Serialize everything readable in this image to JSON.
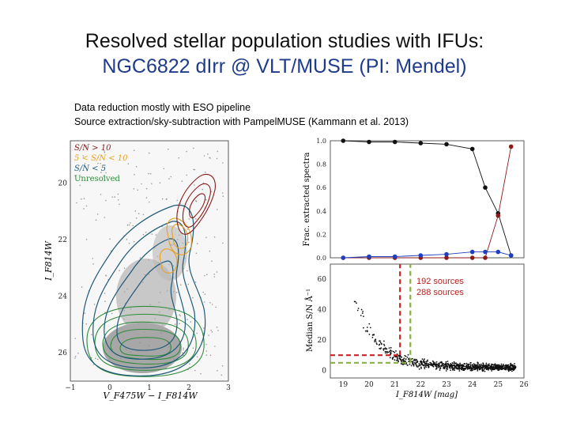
{
  "slide": {
    "title_line1": "Resolved stellar population studies with IFUs:",
    "title_line2": "NGC6822 dIrr @ VLT/MUSE (PI: Mendel)",
    "bullet1": "Data reduction mostly with ESO pipeline",
    "bullet2": "Source extraction/sky-subtraction with PampelMUSE (Kammann et al. 2013)"
  },
  "colors": {
    "title_blue": "#1f3b8c",
    "red": "#8b1a1a",
    "orange": "#e8a020",
    "blue": "#1f5a7a",
    "green": "#2e8b3a",
    "black": "#111111"
  },
  "chart_data": [
    {
      "type": "contour",
      "legend": [
        "S/N > 10",
        "5 < S/N < 10",
        "S/N < 5",
        "Unresolved"
      ],
      "legend_colors": [
        "#8b1a1a",
        "#e8a020",
        "#1f5a7a",
        "#2e8b3a"
      ],
      "xlabel": "V_F475W − I_F814W",
      "ylabel": "I_F814W",
      "xlim": [
        -1,
        3
      ],
      "ylim": [
        27,
        18.5
      ],
      "x_ticks": [
        "−1",
        "0",
        "1",
        "2",
        "3"
      ],
      "y_ticks": [
        "20",
        "22",
        "24",
        "26"
      ]
    },
    {
      "type": "line",
      "ylabel": "Frac. extracted spectra",
      "y_ticks": [
        "1.0",
        "0.8",
        "0.6",
        "0.4",
        "0.2",
        "0.0"
      ],
      "xlim": [
        18.5,
        26
      ],
      "ylim": [
        0,
        1
      ],
      "series": [
        {
          "color": "#111111",
          "x": [
            19,
            20,
            21,
            22,
            23,
            24,
            24.5,
            25,
            25.5
          ],
          "y": [
            1.0,
            0.99,
            0.99,
            0.98,
            0.97,
            0.93,
            0.6,
            0.38,
            0.02
          ]
        },
        {
          "color": "#8b1a1a",
          "x": [
            19,
            20,
            21,
            22,
            23,
            24,
            24.5,
            25,
            25.5
          ],
          "y": [
            0.0,
            0.0,
            0.0,
            0.0,
            0.0,
            0.0,
            0.0,
            0.36,
            0.95
          ]
        },
        {
          "color": "#1f3fbf",
          "x": [
            19,
            20,
            21,
            22,
            23,
            24,
            24.5,
            25,
            25.5
          ],
          "y": [
            0.0,
            0.01,
            0.01,
            0.02,
            0.03,
            0.05,
            0.05,
            0.05,
            0.02
          ]
        }
      ]
    },
    {
      "type": "scatter",
      "ylabel": "Median S/N Å⁻¹",
      "xlabel": "I_F814W [mag]",
      "xlim": [
        18.5,
        26
      ],
      "ylim": [
        -5,
        70
      ],
      "x_ticks": [
        "19",
        "20",
        "21",
        "22",
        "23",
        "24",
        "25",
        "26"
      ],
      "y_ticks": [
        "60",
        "40",
        "20",
        "0"
      ],
      "thresholds": [
        {
          "color": "#cc2222",
          "mag": 21.2,
          "sn": 10
        },
        {
          "color": "#88b048",
          "mag": 21.6,
          "sn": 5
        }
      ],
      "annotations": [
        "192 sources",
        "288 sources"
      ]
    }
  ]
}
